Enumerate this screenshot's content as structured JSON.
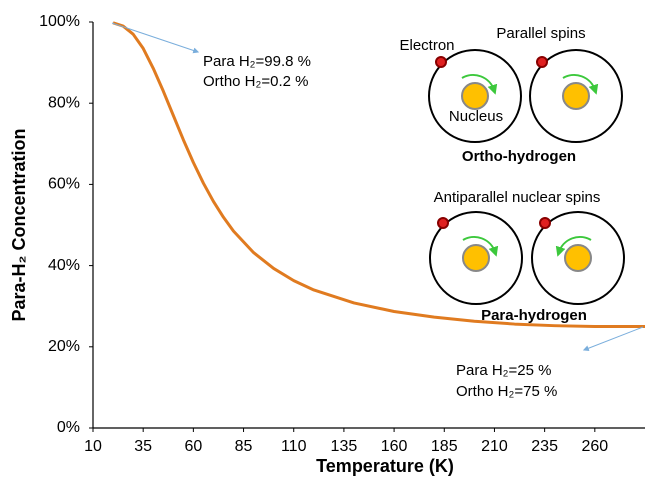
{
  "chart_data": {
    "type": "line",
    "xlabel": "Temperature (K)",
    "ylabel": "Para-H₂ Concentration",
    "x": [
      20,
      25,
      30,
      35,
      40,
      45,
      50,
      55,
      60,
      65,
      70,
      75,
      80,
      90,
      100,
      110,
      120,
      140,
      160,
      180,
      200,
      220,
      240,
      260,
      285
    ],
    "values": [
      99.8,
      99.0,
      97.0,
      93.5,
      88.6,
      83.0,
      77.0,
      71.0,
      65.4,
      60.3,
      55.8,
      51.9,
      48.5,
      43.2,
      39.3,
      36.3,
      34.0,
      30.8,
      28.7,
      27.3,
      26.3,
      25.6,
      25.2,
      25.0,
      25.0
    ],
    "color": "#e07b20",
    "xlim": [
      10,
      285
    ],
    "xticks": [
      10,
      35,
      60,
      85,
      110,
      135,
      160,
      185,
      210,
      235,
      260
    ],
    "ylim": [
      0,
      100
    ],
    "yticks": [
      {
        "value": 0,
        "label": "0%"
      },
      {
        "value": 20,
        "label": "20%"
      },
      {
        "value": 40,
        "label": "40%"
      },
      {
        "value": 60,
        "label": "60%"
      },
      {
        "value": 80,
        "label": "80%"
      },
      {
        "value": 100,
        "label": "100%"
      }
    ],
    "grid": false,
    "annotations": [
      "Para H₂=99.8 %",
      "Ortho H₂=0.2 %",
      "Para H₂=25 %",
      "Ortho H₂=75 %"
    ],
    "diagram_labels": [
      "Electron",
      "Parallel spins",
      "Nucleus",
      "Ortho-hydrogen",
      "Antiparallel nuclear spins",
      "Para-hydrogen"
    ]
  }
}
